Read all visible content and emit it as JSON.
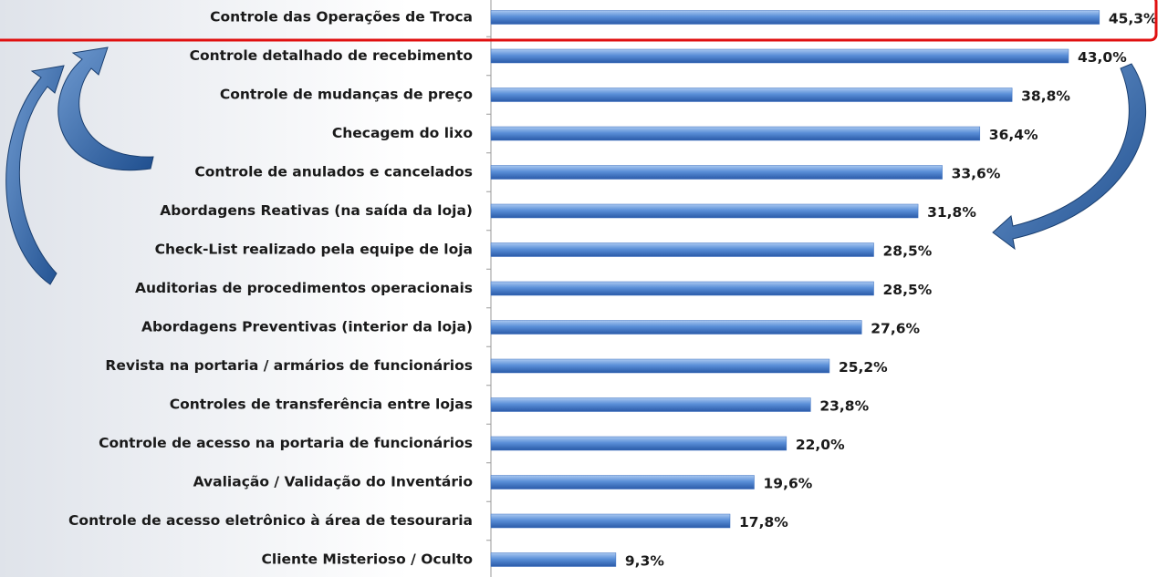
{
  "chart_data": {
    "type": "bar",
    "orientation": "horizontal",
    "categories": [
      "Controle das Operações de Troca",
      "Controle detalhado de recebimento",
      "Controle de mudanças de preço",
      "Checagem do lixo",
      "Controle de anulados e cancelados",
      "Abordagens Reativas (na saída da loja)",
      "Check-List realizado pela equipe de loja",
      "Auditorias de procedimentos operacionais",
      "Abordagens Preventivas (interior da loja)",
      "Revista na portaria / armários de funcionários",
      "Controles de transferência entre lojas",
      "Controle de acesso na portaria de funcionários",
      "Avaliação / Validação do Inventário",
      "Controle de acesso eletrônico à área de tesouraria",
      "Cliente Misterioso / Oculto"
    ],
    "values": [
      45.3,
      43.0,
      38.8,
      36.4,
      33.6,
      31.8,
      28.5,
      28.5,
      27.6,
      25.2,
      23.8,
      22.0,
      19.6,
      17.8,
      9.3
    ],
    "value_labels": [
      "45,3%",
      "43,0%",
      "38,8%",
      "36,4%",
      "33,6%",
      "31,8%",
      "28,5%",
      "28,5%",
      "27,6%",
      "25,2%",
      "23,8%",
      "22,0%",
      "19,6%",
      "17,8%",
      "9,3%"
    ],
    "color": "#3a6fc0"
  }
}
